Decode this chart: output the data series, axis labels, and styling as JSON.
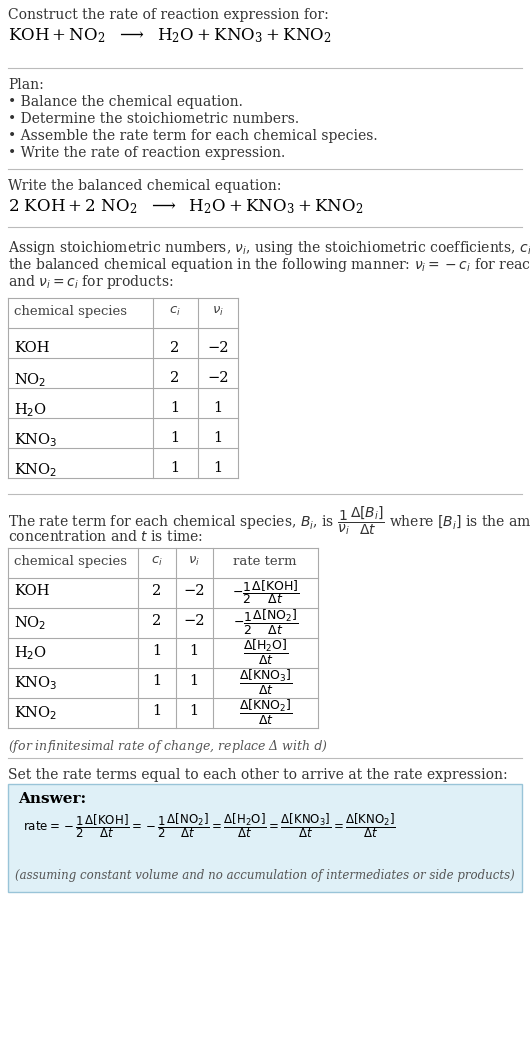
{
  "bg_color": "#ffffff",
  "text_color": "#000000",
  "gray_text": "#444444",
  "answer_bg": "#dff0f7",
  "answer_border": "#99c4d8",
  "title_text": "Construct the rate of reaction expression for:",
  "plan_header": "Plan:",
  "plan_items": [
    "• Balance the chemical equation.",
    "• Determine the stoichiometric numbers.",
    "• Assemble the rate term for each chemical species.",
    "• Write the rate of reaction expression."
  ],
  "balanced_header": "Write the balanced chemical equation:",
  "stoich_lines": [
    "Assign stoichiometric numbers, $\\nu_i$, using the stoichiometric coefficients, $c_i$, from",
    "the balanced chemical equation in the following manner: $\\nu_i = -c_i$ for reactants",
    "and $\\nu_i = c_i$ for products:"
  ],
  "table1_rows": [
    [
      "KOH",
      "2",
      "−2"
    ],
    [
      "NO$_2$",
      "2",
      "−2"
    ],
    [
      "H$_2$O",
      "1",
      "1"
    ],
    [
      "KNO$_3$",
      "1",
      "1"
    ],
    [
      "KNO$_2$",
      "1",
      "1"
    ]
  ],
  "rate_intro1": "The rate term for each chemical species, $B_i$, is $\\dfrac{1}{\\nu_i}\\dfrac{\\Delta[B_i]}{\\Delta t}$ where $[B_i]$ is the amount",
  "rate_intro2": "concentration and $t$ is time:",
  "table2_rows": [
    [
      "KOH",
      "2",
      "−2"
    ],
    [
      "NO$_2$",
      "2",
      "−2"
    ],
    [
      "H$_2$O",
      "1",
      "1"
    ],
    [
      "KNO$_3$",
      "1",
      "1"
    ],
    [
      "KNO$_2$",
      "1",
      "1"
    ]
  ],
  "inf_note": "(for infinitesimal rate of change, replace Δ with $d$)",
  "set_equal_text": "Set the rate terms equal to each other to arrive at the rate expression:",
  "answer_label": "Answer:",
  "answer_note": "(assuming constant volume and no accumulation of intermediates or side products)"
}
